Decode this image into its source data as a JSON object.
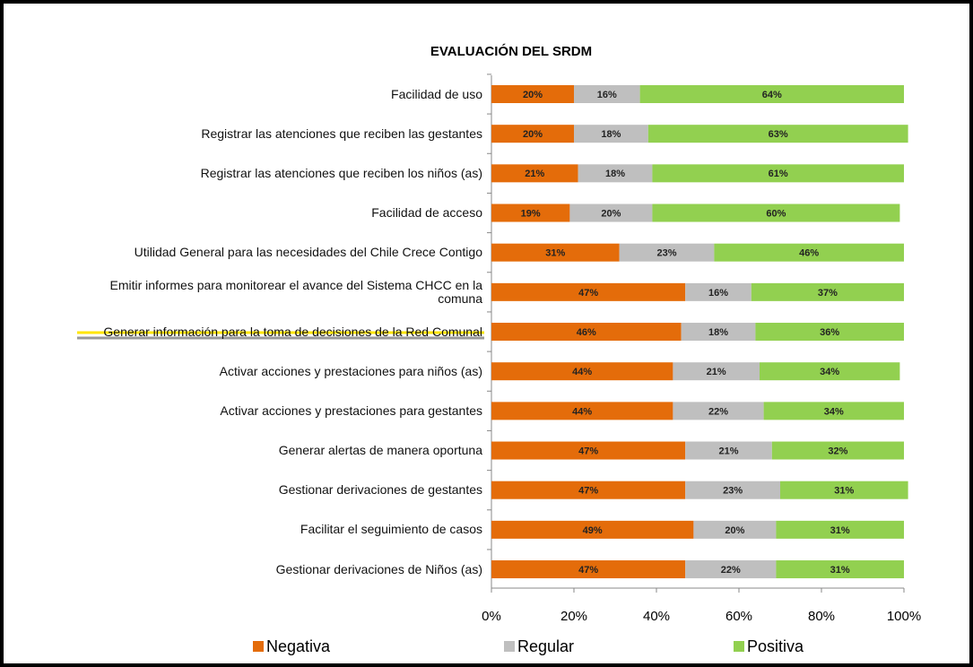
{
  "chart_data": {
    "type": "bar",
    "orientation": "horizontal",
    "stacked": true,
    "title": "EVALUACIÓN DEL SRDM",
    "categories": [
      "Facilidad de uso",
      "Registrar las atenciones que reciben las gestantes",
      "Registrar las atenciones que reciben los niños (as)",
      "Facilidad de acceso",
      "Utilidad General para las necesidades del Chile Crece Contigo",
      "Emitir informes para monitorear el avance del Sistema CHCC en la comuna",
      "Generar información para la toma de decisiones de la Red Comunal",
      "Activar acciones y prestaciones para niños (as)",
      "Activar acciones y prestaciones para gestantes",
      "Generar alertas de manera oportuna",
      "Gestionar derivaciones de gestantes",
      "Facilitar el seguimiento de casos",
      "Gestionar derivaciones de Niños (as)"
    ],
    "series": [
      {
        "name": "Negativa",
        "color": "#e46c0a",
        "values": [
          20,
          20,
          21,
          19,
          31,
          47,
          46,
          44,
          44,
          47,
          47,
          49,
          47
        ],
        "value_labels": [
          "20%",
          "20%",
          "21%",
          "19%",
          "31%",
          "47%",
          "46%",
          "44%",
          "44%",
          "47%",
          "47%",
          "49%",
          "47%"
        ]
      },
      {
        "name": "Regular",
        "color": "#bfbfbf",
        "values": [
          16,
          18,
          18,
          20,
          23,
          16,
          18,
          21,
          22,
          21,
          23,
          20,
          22
        ],
        "value_labels": [
          "16%",
          "18%",
          "18%",
          "20%",
          "23%",
          "16%",
          "18%",
          "21%",
          "22%",
          "21%",
          "23%",
          "20%",
          "22%"
        ]
      },
      {
        "name": "Positiva",
        "color": "#92d050",
        "values": [
          64,
          63,
          61,
          60,
          46,
          37,
          36,
          34,
          34,
          32,
          31,
          31,
          31
        ],
        "value_labels": [
          "64%",
          "63%",
          "61%",
          "60%",
          "46%",
          "37%",
          "36%",
          "34%",
          "34%",
          "32%",
          "31%",
          "31%",
          "31%"
        ]
      }
    ],
    "xlim": [
      0,
      100
    ],
    "xticks": [
      {
        "value": 0,
        "label": "0%"
      },
      {
        "value": 20,
        "label": "20%"
      },
      {
        "value": 40,
        "label": "40%"
      },
      {
        "value": 60,
        "label": "60%"
      },
      {
        "value": 80,
        "label": "80%"
      },
      {
        "value": 100,
        "label": "100%"
      }
    ],
    "legend": "bottom"
  }
}
